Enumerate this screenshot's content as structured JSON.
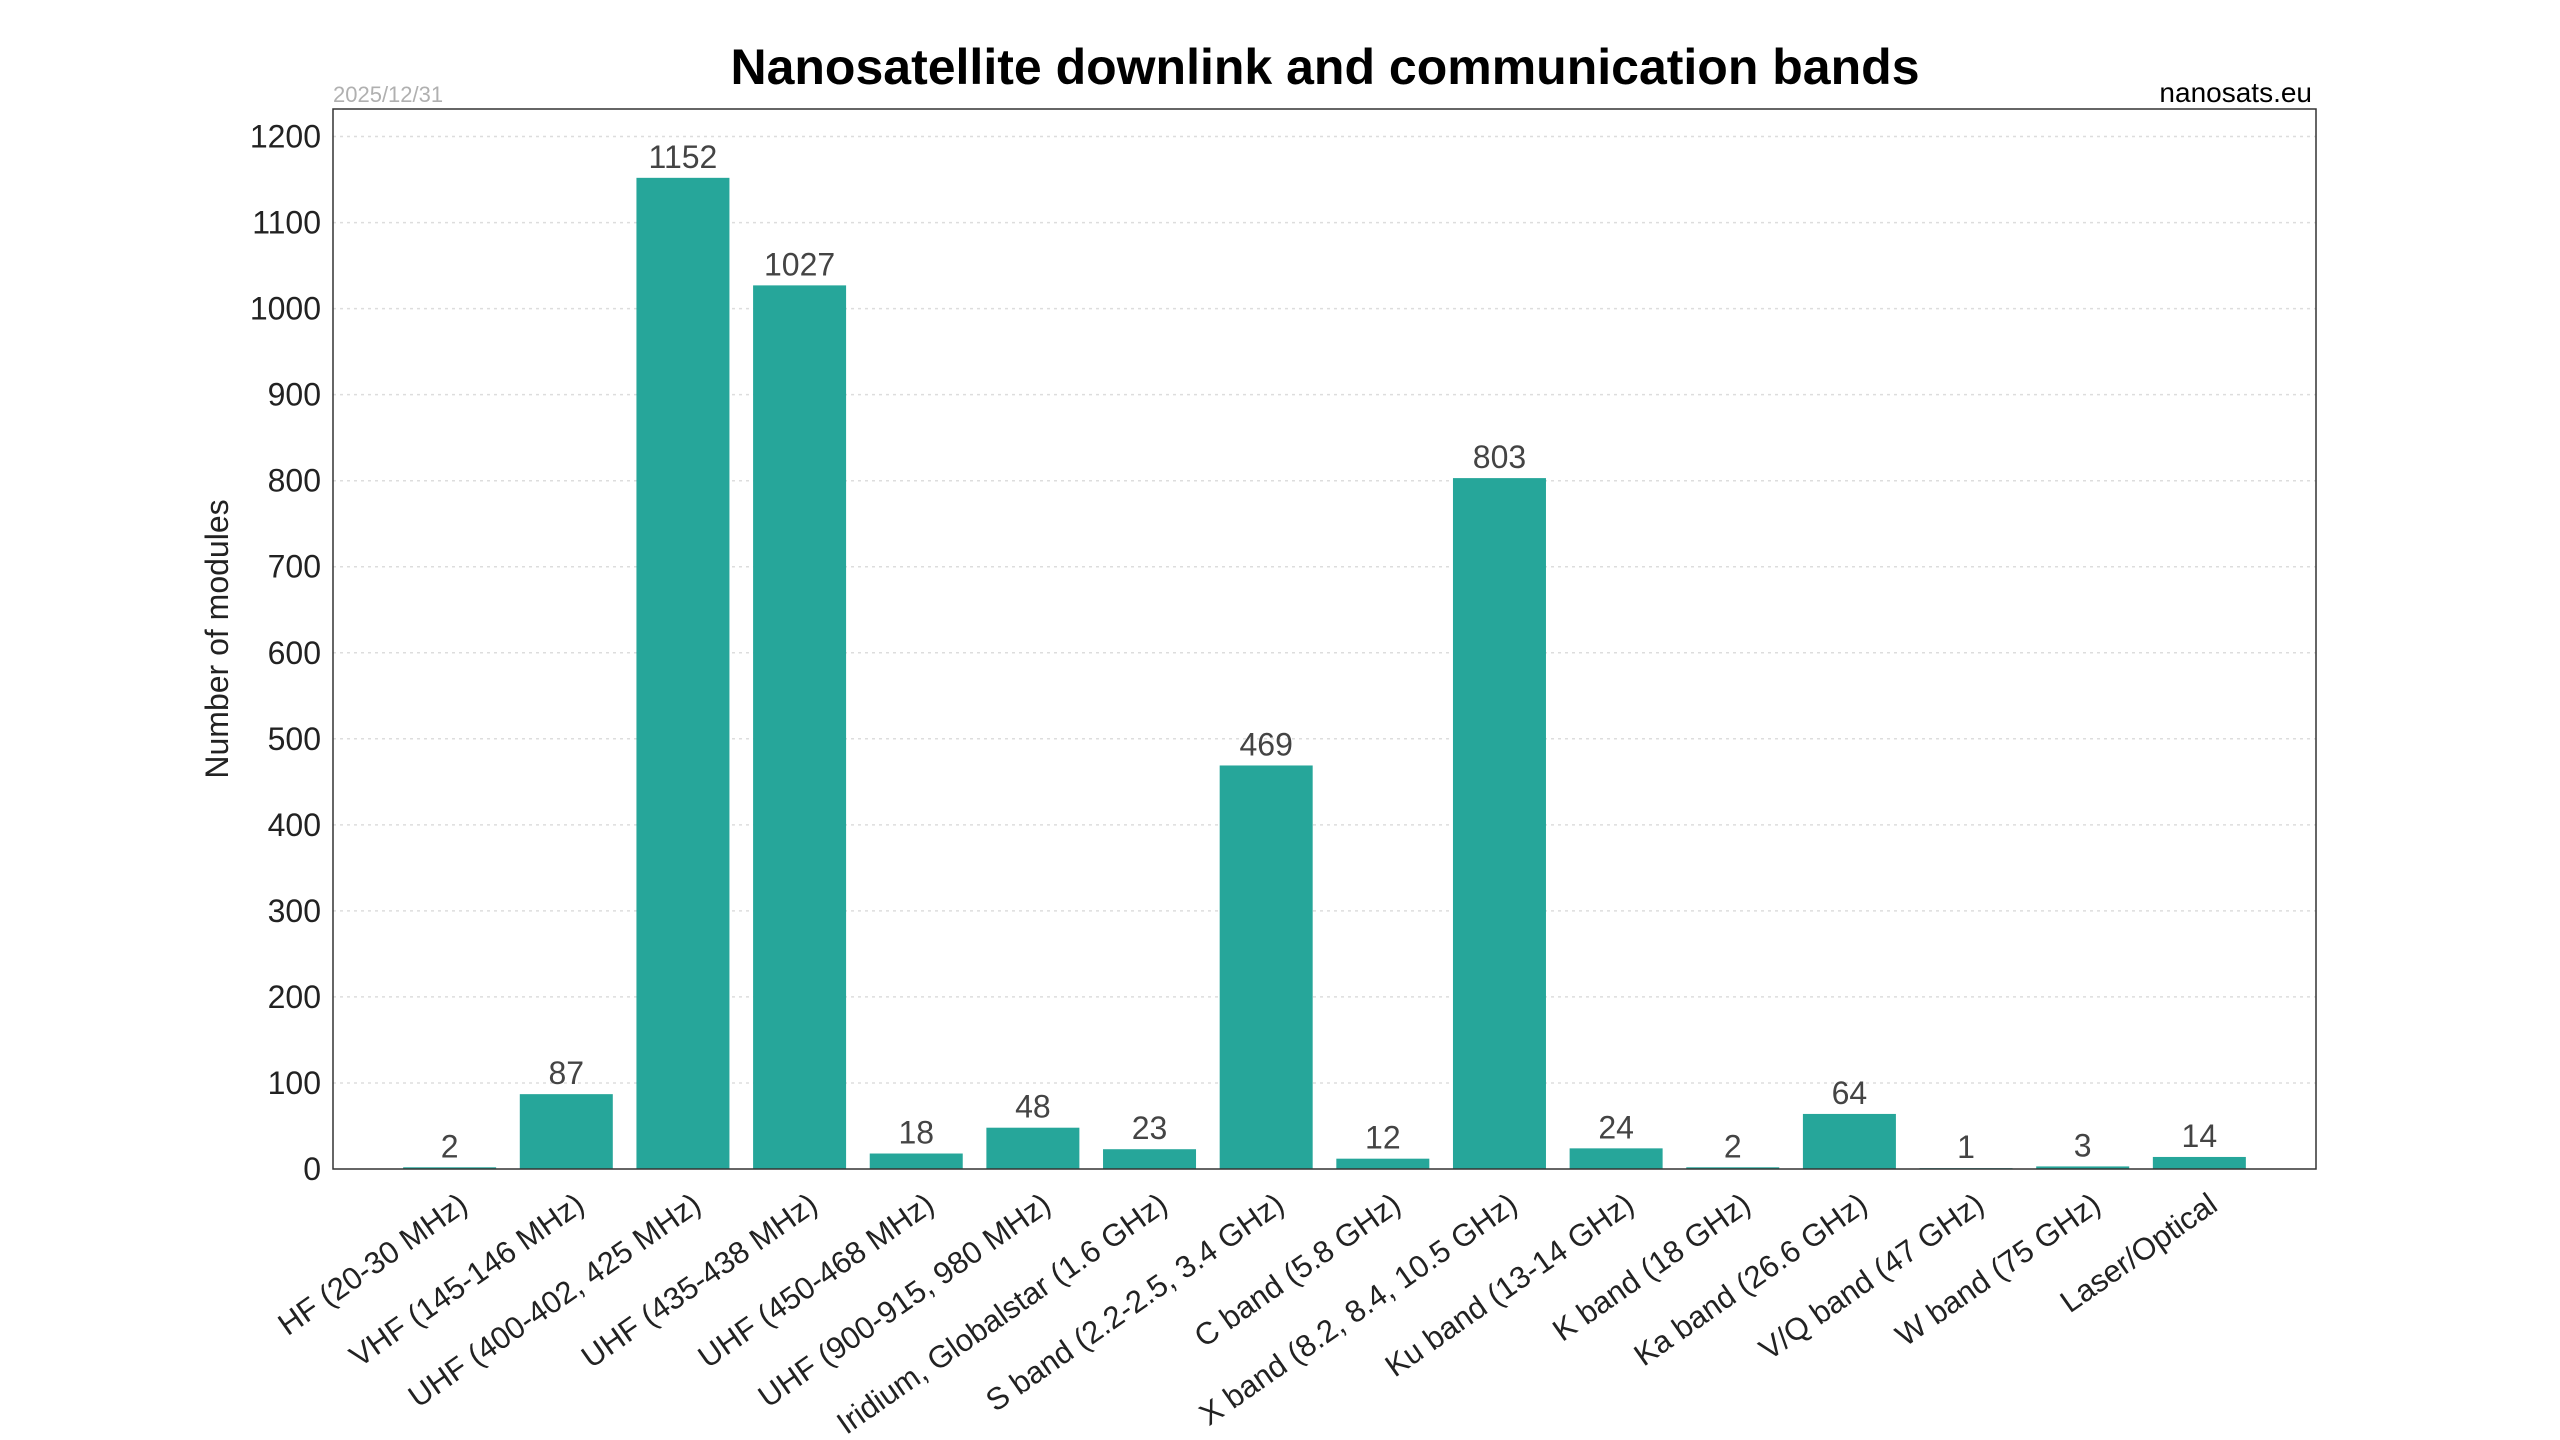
{
  "chart_data": {
    "type": "bar",
    "title": "Nanosatellite downlink and communication bands",
    "date": "2025/12/31",
    "source": "nanosats.eu",
    "xlabel": "",
    "ylabel": "Number of modules",
    "ylim": [
      0,
      1232
    ],
    "yticks": [
      0,
      100,
      200,
      300,
      400,
      500,
      600,
      700,
      800,
      900,
      1000,
      1100,
      1200
    ],
    "grid": true,
    "bar_color": "#26a69a",
    "categories": [
      "HF (20-30 MHz)",
      "VHF (145-146 MHz)",
      "UHF (400-402, 425 MHz)",
      "UHF (435-438 MHz)",
      "UHF (450-468 MHz)",
      "UHF (900-915, 980 MHz)",
      "Iridium, Globalstar (1.6 GHz)",
      "S band (2.2-2.5, 3.4 GHz)",
      "C band (5.8 GHz)",
      "X band (8.2, 8.4, 10.5 GHz)",
      "Ku band (13-14 GHz)",
      "K band (18 GHz)",
      "Ka band (26.6 GHz)",
      "V/Q band (47 GHz)",
      "W band (75 GHz)",
      "Laser/Optical"
    ],
    "values": [
      2,
      87,
      1152,
      1027,
      18,
      48,
      23,
      469,
      12,
      803,
      24,
      2,
      64,
      1,
      3,
      14
    ]
  }
}
